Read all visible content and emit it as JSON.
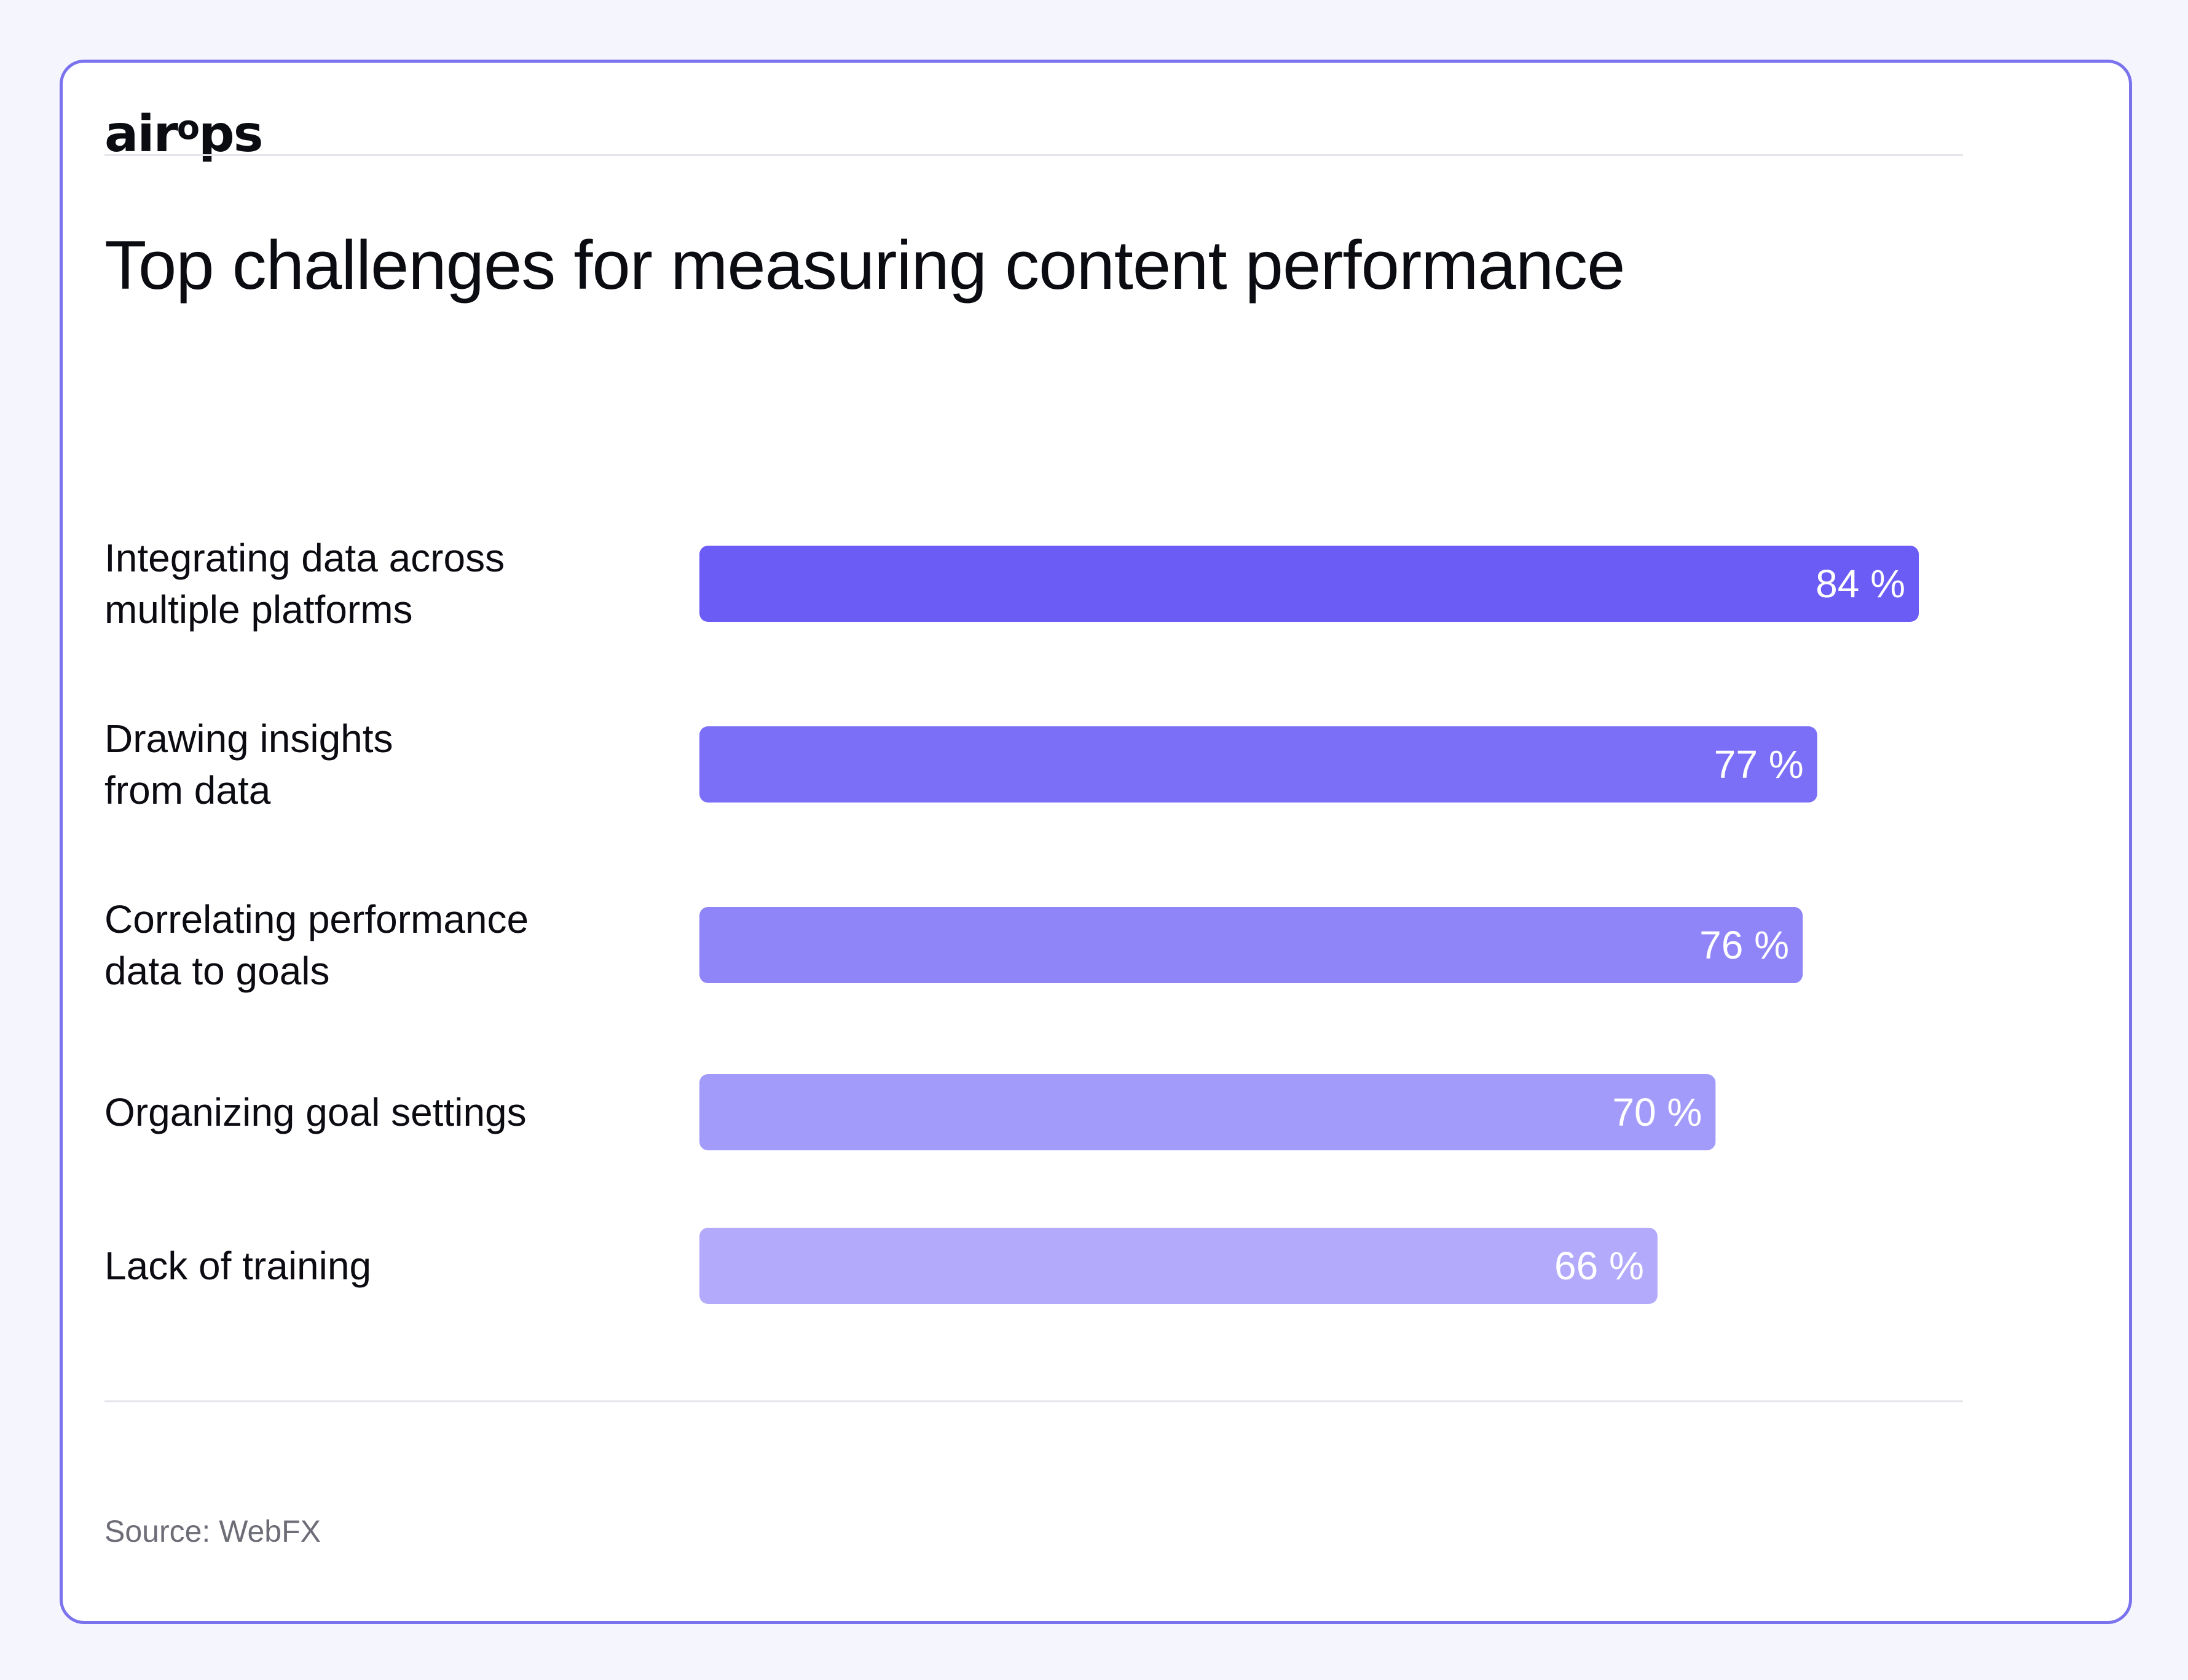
{
  "logo": "airops",
  "chart_data": {
    "type": "bar",
    "orientation": "horizontal",
    "title": "Top challenges for measuring content performance",
    "categories": [
      "Integrating data across\nmultiple platforms",
      "Drawing insights\nfrom data",
      "Correlating performance\ndata to goals",
      "Organizing goal settings",
      "Lack of training"
    ],
    "values": [
      84,
      77,
      76,
      70,
      66
    ],
    "value_labels": [
      "84 %",
      "77 %",
      "76 %",
      "70 %",
      "66 %"
    ],
    "colors": [
      "#6b5cf6",
      "#7b6ff7",
      "#8f85f9",
      "#a39bfa",
      "#b3aafc"
    ],
    "xlim": [
      0,
      100
    ],
    "xlabel": "",
    "ylabel": "",
    "grid": false,
    "legend": "none"
  },
  "source": "Source: WebFX"
}
